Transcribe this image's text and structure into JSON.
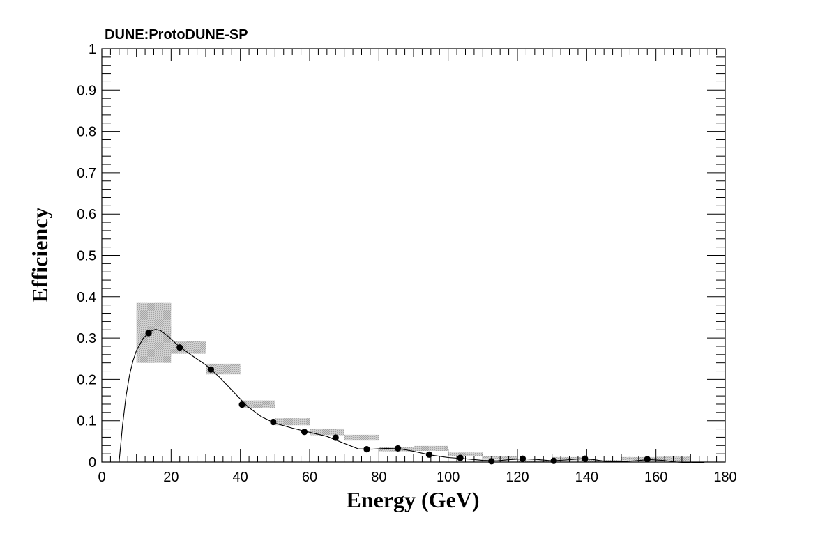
{
  "chart_data": {
    "type": "scatter",
    "title": "DUNE:ProtoDUNE-SP",
    "xlabel": "Energy (GeV)",
    "ylabel": "Efficiency",
    "xlim": [
      0,
      180
    ],
    "ylim": [
      0,
      1
    ],
    "x_ticks": [
      "0",
      "20",
      "40",
      "60",
      "80",
      "100",
      "120",
      "140",
      "160",
      "180"
    ],
    "y_ticks": [
      "0",
      "0.1",
      "0.2",
      "0.3",
      "0.4",
      "0.5",
      "0.6",
      "0.7",
      "0.8",
      "0.9",
      "1"
    ],
    "grid": false,
    "points": [
      {
        "x": 13.5,
        "y": 0.312,
        "xlo": 10,
        "xhi": 20,
        "ylo": 0.24,
        "yhi": 0.385
      },
      {
        "x": 22.5,
        "y": 0.277,
        "xlo": 20,
        "xhi": 30,
        "ylo": 0.262,
        "yhi": 0.293
      },
      {
        "x": 31.5,
        "y": 0.224,
        "xlo": 30,
        "xhi": 40,
        "ylo": 0.212,
        "yhi": 0.238
      },
      {
        "x": 40.5,
        "y": 0.139,
        "xlo": 40,
        "xhi": 50,
        "ylo": 0.13,
        "yhi": 0.149
      },
      {
        "x": 49.5,
        "y": 0.097,
        "xlo": 50,
        "xhi": 60,
        "ylo": 0.089,
        "yhi": 0.106
      },
      {
        "x": 58.5,
        "y": 0.073,
        "xlo": 60,
        "xhi": 70,
        "ylo": 0.065,
        "yhi": 0.081
      },
      {
        "x": 67.5,
        "y": 0.059,
        "xlo": 70,
        "xhi": 80,
        "ylo": 0.052,
        "yhi": 0.066
      },
      {
        "x": 76.5,
        "y": 0.031,
        "xlo": 80,
        "xhi": 90,
        "ylo": 0.026,
        "yhi": 0.037
      },
      {
        "x": 85.5,
        "y": 0.033,
        "xlo": 90,
        "xhi": 100,
        "ylo": 0.027,
        "yhi": 0.039
      },
      {
        "x": 94.5,
        "y": 0.018,
        "xlo": 100,
        "xhi": 110,
        "ylo": 0.014,
        "yhi": 0.023
      },
      {
        "x": 103.5,
        "y": 0.01,
        "xlo": 110,
        "xhi": 120,
        "ylo": 0.006,
        "yhi": 0.014
      },
      {
        "x": 112.5,
        "y": 0.002,
        "xlo": 120,
        "xhi": 130,
        "ylo": 0.0,
        "yhi": 0.004
      },
      {
        "x": 121.5,
        "y": 0.008,
        "xlo": 130,
        "xhi": 140,
        "ylo": 0.004,
        "yhi": 0.012
      },
      {
        "x": 130.5,
        "y": 0.003,
        "xlo": 140,
        "xhi": 150,
        "ylo": 0.0,
        "yhi": 0.005
      },
      {
        "x": 139.5,
        "y": 0.008,
        "xlo": 150,
        "xhi": 160,
        "ylo": 0.004,
        "yhi": 0.012
      },
      {
        "x": 157.5,
        "y": 0.007,
        "xlo": 160,
        "xhi": 170,
        "ylo": 0.003,
        "yhi": 0.013
      }
    ],
    "error_boxes": [
      {
        "xlo": 10,
        "xhi": 20,
        "ylo": 0.24,
        "yhi": 0.385
      },
      {
        "xlo": 20,
        "xhi": 30,
        "ylo": 0.262,
        "yhi": 0.293
      },
      {
        "xlo": 30,
        "xhi": 40,
        "ylo": 0.212,
        "yhi": 0.238
      },
      {
        "xlo": 40,
        "xhi": 50,
        "ylo": 0.13,
        "yhi": 0.149
      },
      {
        "xlo": 50,
        "xhi": 60,
        "ylo": 0.089,
        "yhi": 0.106
      },
      {
        "xlo": 60,
        "xhi": 70,
        "ylo": 0.065,
        "yhi": 0.081
      },
      {
        "xlo": 70,
        "xhi": 80,
        "ylo": 0.052,
        "yhi": 0.066
      },
      {
        "xlo": 80,
        "xhi": 90,
        "ylo": 0.026,
        "yhi": 0.037
      },
      {
        "xlo": 90,
        "xhi": 100,
        "ylo": 0.027,
        "yhi": 0.039
      },
      {
        "xlo": 100,
        "xhi": 110,
        "ylo": 0.014,
        "yhi": 0.023
      },
      {
        "xlo": 110,
        "xhi": 120,
        "ylo": 0.006,
        "yhi": 0.014
      },
      {
        "xlo": 120,
        "xhi": 130,
        "ylo": 0.0,
        "yhi": 0.004
      },
      {
        "xlo": 130,
        "xhi": 140,
        "ylo": 0.004,
        "yhi": 0.012
      },
      {
        "xlo": 140,
        "xhi": 150,
        "ylo": 0.0,
        "yhi": 0.005
      },
      {
        "xlo": 150,
        "xhi": 160,
        "ylo": 0.004,
        "yhi": 0.012
      },
      {
        "xlo": 160,
        "xhi": 170,
        "ylo": 0.003,
        "yhi": 0.013
      }
    ],
    "fit_curve": [
      [
        5,
        0.0
      ],
      [
        6,
        0.09
      ],
      [
        7,
        0.16
      ],
      [
        8,
        0.21
      ],
      [
        9,
        0.245
      ],
      [
        10,
        0.27
      ],
      [
        12,
        0.3
      ],
      [
        14,
        0.316
      ],
      [
        15.5,
        0.321
      ],
      [
        17,
        0.318
      ],
      [
        19,
        0.305
      ],
      [
        22,
        0.282
      ],
      [
        26,
        0.258
      ],
      [
        30,
        0.235
      ],
      [
        34,
        0.205
      ],
      [
        38,
        0.17
      ],
      [
        42,
        0.135
      ],
      [
        46,
        0.11
      ],
      [
        50,
        0.094
      ],
      [
        55,
        0.082
      ],
      [
        60,
        0.072
      ],
      [
        65,
        0.062
      ],
      [
        70,
        0.045
      ],
      [
        74,
        0.032
      ],
      [
        78,
        0.031
      ],
      [
        82,
        0.033
      ],
      [
        86,
        0.032
      ],
      [
        90,
        0.026
      ],
      [
        95,
        0.017
      ],
      [
        100,
        0.011
      ],
      [
        105,
        0.008
      ],
      [
        110,
        0.004
      ],
      [
        114,
        0.003
      ],
      [
        118,
        0.006
      ],
      [
        122,
        0.008
      ],
      [
        126,
        0.006
      ],
      [
        130,
        0.003
      ],
      [
        134,
        0.005
      ],
      [
        138,
        0.008
      ],
      [
        142,
        0.006
      ],
      [
        146,
        0.001
      ],
      [
        150,
        0.001
      ],
      [
        154,
        0.003
      ],
      [
        158,
        0.006
      ],
      [
        162,
        0.004
      ],
      [
        166,
        0.0
      ],
      [
        170,
        -0.002
      ],
      [
        174,
        -0.001
      ]
    ],
    "colors": {
      "marker": "#000000",
      "error_box": "#bfbfbf",
      "line": "#000000",
      "frame": "#000000"
    }
  }
}
